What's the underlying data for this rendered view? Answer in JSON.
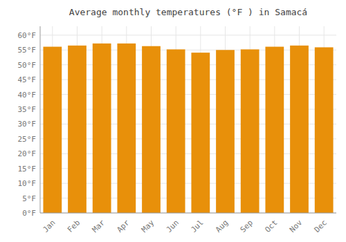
{
  "chart_data": {
    "type": "bar",
    "title": "Average monthly temperatures (°F ) in Samacá",
    "categories": [
      "Jan",
      "Feb",
      "Mar",
      "Apr",
      "May",
      "Jun",
      "Jul",
      "Aug",
      "Sep",
      "Oct",
      "Nov",
      "Dec"
    ],
    "values": [
      56.1,
      56.5,
      57.2,
      57.2,
      56.3,
      55.2,
      54.1,
      55.0,
      55.2,
      56.1,
      56.5,
      55.9
    ],
    "color": "#E8900A",
    "ylim": [
      0,
      63
    ],
    "yticks": [
      {
        "value": 0,
        "label": "0°F"
      },
      {
        "value": 5,
        "label": "5°F"
      },
      {
        "value": 10,
        "label": "10°F"
      },
      {
        "value": 15,
        "label": "15°F"
      },
      {
        "value": 20,
        "label": "20°F"
      },
      {
        "value": 25,
        "label": "25°F"
      },
      {
        "value": 30,
        "label": "30°F"
      },
      {
        "value": 35,
        "label": "35°F"
      },
      {
        "value": 40,
        "label": "40°F"
      },
      {
        "value": 45,
        "label": "45°F"
      },
      {
        "value": 50,
        "label": "50°F"
      },
      {
        "value": 55,
        "label": "55°F"
      },
      {
        "value": 60,
        "label": "60°F"
      }
    ],
    "grid": true
  }
}
